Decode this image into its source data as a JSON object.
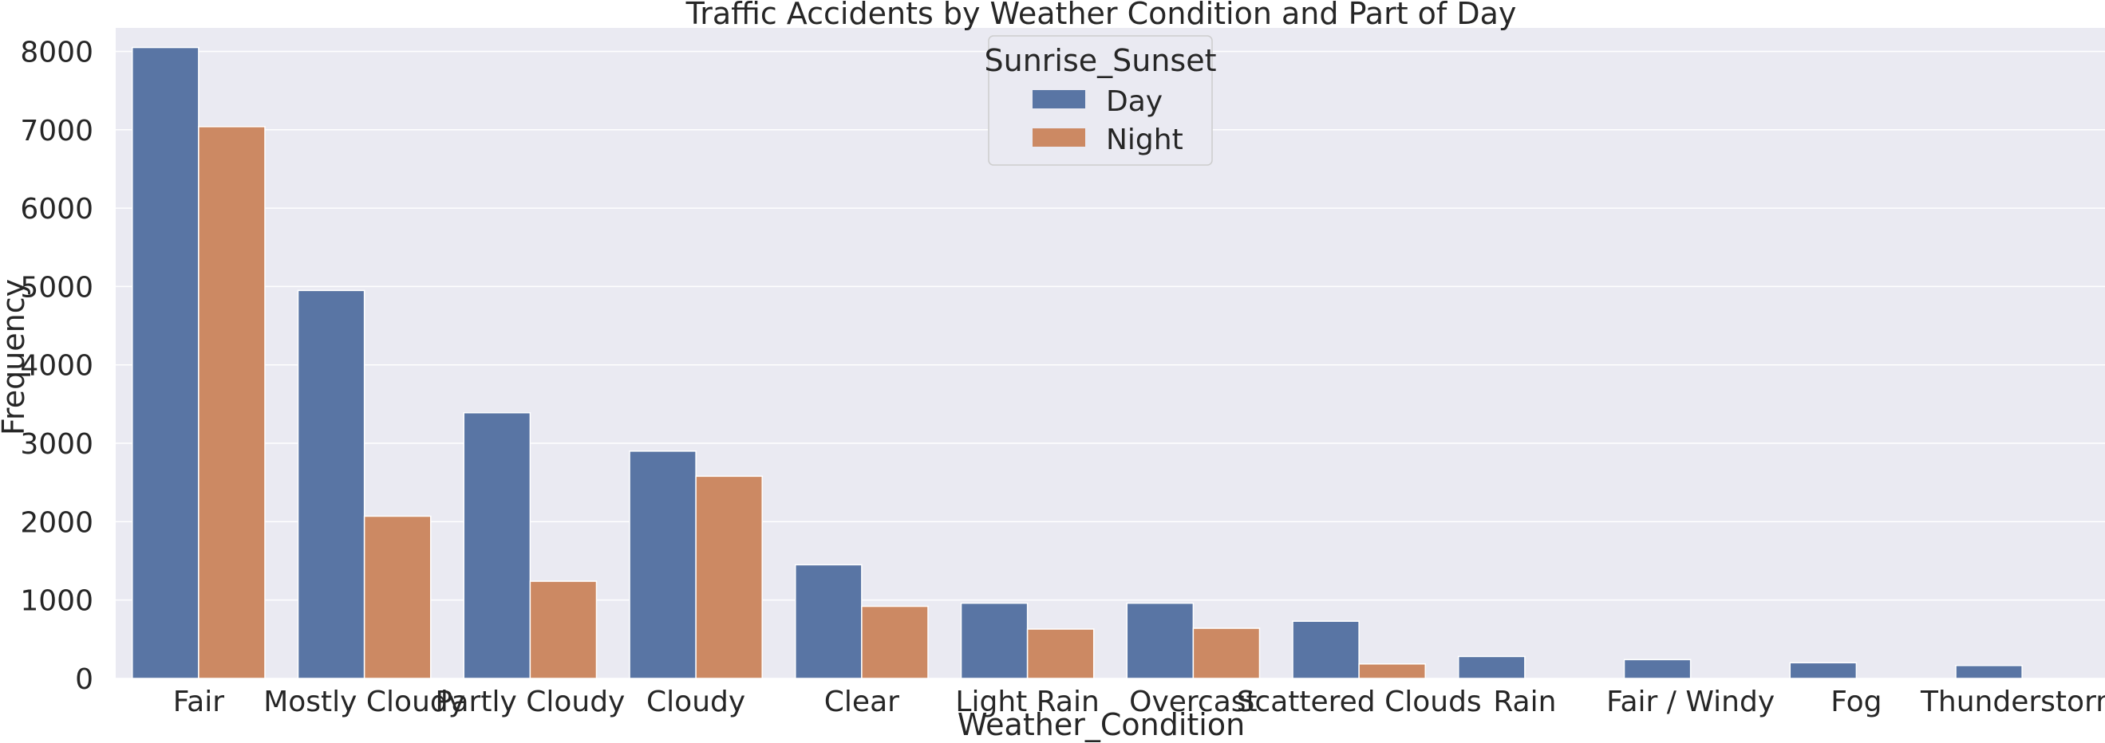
{
  "chart_data": {
    "type": "bar",
    "title": "Traffic Accidents by Weather Condition and Part of Day",
    "xlabel": "Weather_Condition",
    "ylabel": "Frequency",
    "ylim": [
      0,
      8300
    ],
    "yticks": [
      0,
      1000,
      2000,
      3000,
      4000,
      5000,
      6000,
      7000,
      8000
    ],
    "grid": true,
    "legend": {
      "title": "Sunrise_Sunset",
      "placement": "top-center"
    },
    "categories": [
      "Fair",
      "Mostly Cloudy",
      "Partly Cloudy",
      "Cloudy",
      "Clear",
      "Light Rain",
      "Overcast",
      "Scattered Clouds",
      "Rain",
      "Fair / Windy",
      "Fog",
      "Thunderstorm"
    ],
    "series": [
      {
        "name": "Day",
        "color": "#5975a4",
        "values": [
          8050,
          4950,
          3390,
          2900,
          1450,
          960,
          960,
          730,
          280,
          240,
          200,
          165
        ]
      },
      {
        "name": "Night",
        "color": "#cc8963",
        "values": [
          7040,
          2070,
          1240,
          2580,
          920,
          630,
          640,
          185,
          0,
          0,
          0,
          0
        ]
      }
    ],
    "background_color": "#eaeaf2",
    "grid_color": "#ffffff"
  }
}
